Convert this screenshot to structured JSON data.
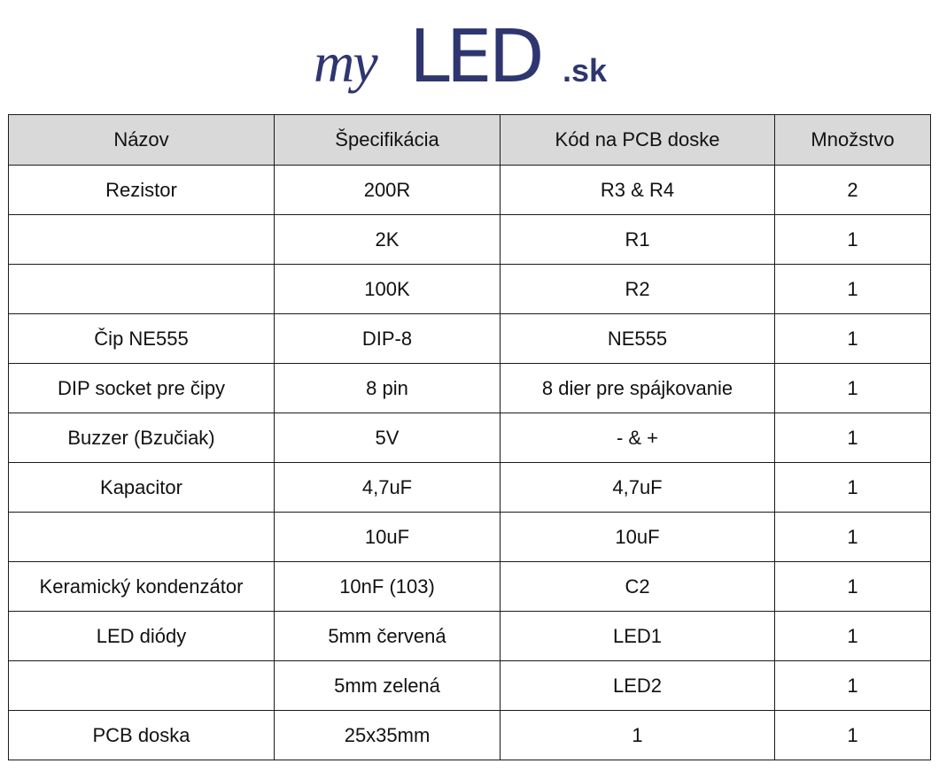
{
  "logo": {
    "script": "my",
    "main": "LED",
    "suffix": ".sk",
    "color": "#2e3670"
  },
  "table": {
    "headers": [
      "Názov",
      "Špecifikácia",
      "Kód na PCB doske",
      "Množstvo"
    ],
    "rows": [
      [
        "Rezistor",
        "200R",
        "R3 & R4",
        "2"
      ],
      [
        "",
        "2K",
        "R1",
        "1"
      ],
      [
        "",
        "100K",
        "R2",
        "1"
      ],
      [
        "Čip NE555",
        "DIP-8",
        "NE555",
        "1"
      ],
      [
        "DIP socket pre čipy",
        "8 pin",
        "8 dier pre spájkovanie",
        "1"
      ],
      [
        "Buzzer (Bzučiak)",
        "5V",
        "- & +",
        "1"
      ],
      [
        "Kapacitor",
        "4,7uF",
        "4,7uF",
        "1"
      ],
      [
        "",
        "10uF",
        "10uF",
        "1"
      ],
      [
        "Keramický kondenzátor",
        "10nF (103)",
        "C2",
        "1"
      ],
      [
        "LED diódy",
        "5mm červená",
        "LED1",
        "1"
      ],
      [
        "",
        "5mm zelená",
        "LED2",
        "1"
      ],
      [
        "PCB doska",
        "25x35mm",
        "1",
        "1"
      ]
    ],
    "header_bg": "#d9d9d9",
    "border_color": "#1a1a1a"
  }
}
